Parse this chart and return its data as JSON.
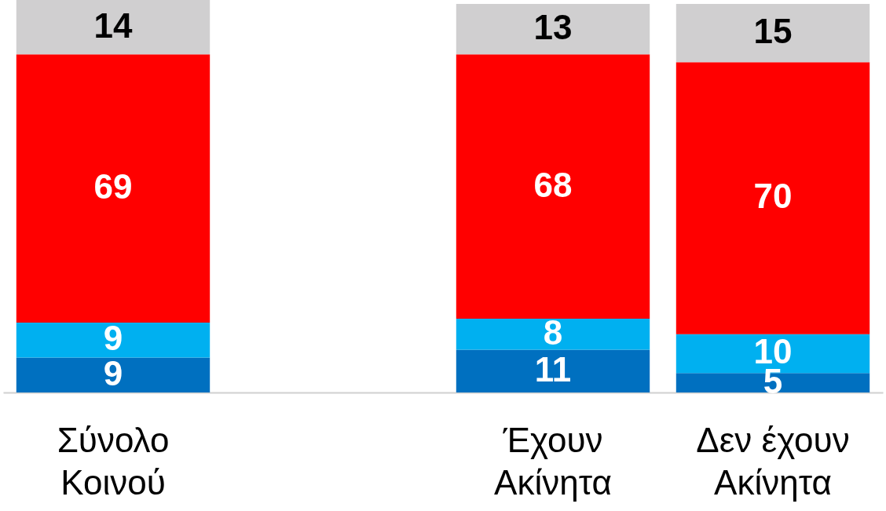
{
  "chart_data": {
    "type": "bar",
    "stacked": true,
    "data_labels": true,
    "categories": [
      "Σύνολο Κοινού",
      null,
      "Έχουν Ακίνητα",
      "Δεν έχουν Ακίνητα"
    ],
    "series": [
      {
        "color": "#0070c0",
        "values": [
          9,
          null,
          11,
          5
        ]
      },
      {
        "color": "#00b0f0",
        "values": [
          9,
          null,
          8,
          10
        ]
      },
      {
        "color": "#ff0000",
        "values": [
          69,
          null,
          68,
          70
        ]
      },
      {
        "color": "#d0cfd0",
        "values": [
          14,
          null,
          13,
          15
        ]
      }
    ]
  }
}
